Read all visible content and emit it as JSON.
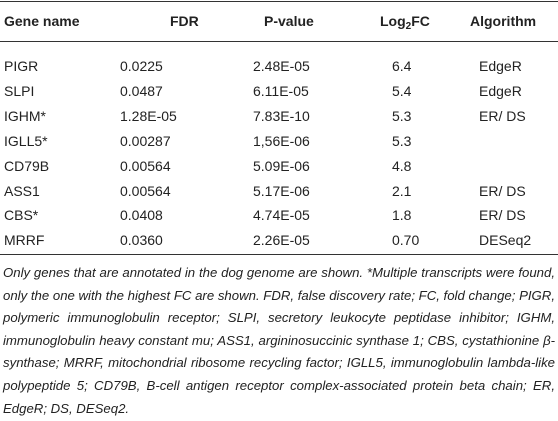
{
  "table": {
    "header": [
      "Gene name",
      "FDR",
      "P-value",
      [
        "Log",
        "2",
        "FC"
      ],
      "Algorithm"
    ],
    "rows": [
      [
        "PIGR",
        "0.0225",
        "2.48E-05",
        "6.4",
        "EdgeR"
      ],
      [
        "SLPI",
        "0.0487",
        "6.11E-05",
        "5.4",
        "EdgeR"
      ],
      [
        "IGHM*",
        "1.28E-05",
        "7.83E-10",
        "5.3",
        "ER/ DS"
      ],
      [
        "IGLL5*",
        "0.00287",
        "1,56E-06",
        "5.3",
        null
      ],
      [
        "CD79B",
        "0.00564",
        "5.09E-06",
        "4.8",
        null
      ],
      [
        "ASS1",
        "0.00564",
        "5.17E-06",
        "2.1",
        "ER/ DS"
      ],
      [
        "CBS*",
        "0.0408",
        "4.74E-05",
        "1.8",
        "ER/ DS"
      ],
      [
        "MRRF",
        "0.0360",
        "2.26E-05",
        "0.70",
        "DESeq2"
      ]
    ],
    "footnote": "Only genes that are annotated in the dog genome are shown. *Multiple transcripts were found, only the one with the highest FC are shown. FDR, false discovery rate; FC, fold change; PIGR, polymeric immunoglobulin receptor; SLPI, secretory leukocyte peptidase inhibitor; IGHM, immunoglobulin heavy constant mu; ASS1, argininosuccinic synthase 1; CBS, cystathionine β-synthase; MRRF, mitochondrial ribosome recycling factor; IGLL5, immunoglobulin lambda-like polypeptide 5; CD79B, B-cell antigen receptor complex-associated protein beta chain; ER, EdgeR; DS, DESeq2."
  }
}
